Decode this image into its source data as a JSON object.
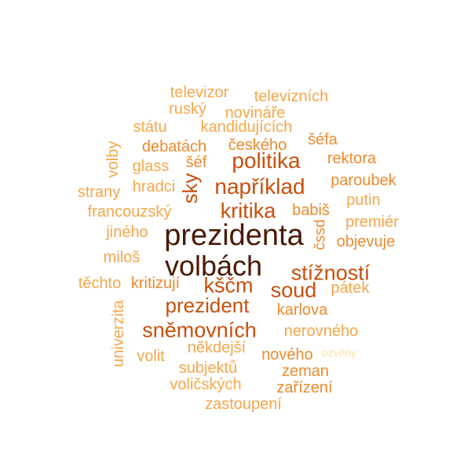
{
  "palette": {
    "lightest": "#fde0a5",
    "light": "#f7a64a",
    "medium": "#ee8a2c",
    "orange": "#e0701c",
    "dark_orange": "#c94f0c",
    "brown": "#8f3006",
    "darkest": "#4a1a04"
  },
  "words": [
    {
      "text": "prezidenta",
      "weight": 10
    },
    {
      "text": "volbách",
      "weight": 9.5
    },
    {
      "text": "stížností",
      "weight": 6
    },
    {
      "text": "kščm",
      "weight": 6
    },
    {
      "text": "politika",
      "weight": 6
    },
    {
      "text": "například",
      "weight": 6
    },
    {
      "text": "kritika",
      "weight": 5.5
    },
    {
      "text": "soud",
      "weight": 5.5
    },
    {
      "text": "prezident",
      "weight": 5.5
    },
    {
      "text": "sněmovních",
      "weight": 5.5
    },
    {
      "text": "sky",
      "weight": 5
    },
    {
      "text": "babiš",
      "weight": 3.5
    },
    {
      "text": "čssd",
      "weight": 3
    },
    {
      "text": "objevuje",
      "weight": 3
    },
    {
      "text": "televizor",
      "weight": 3
    },
    {
      "text": "televizních",
      "weight": 3
    },
    {
      "text": "ruský",
      "weight": 3
    },
    {
      "text": "novináře",
      "weight": 3
    },
    {
      "text": "státu",
      "weight": 3
    },
    {
      "text": "kandidujících",
      "weight": 3
    },
    {
      "text": "šéfa",
      "weight": 3
    },
    {
      "text": "debatách",
      "weight": 3
    },
    {
      "text": "českého",
      "weight": 3
    },
    {
      "text": "volby",
      "weight": 3
    },
    {
      "text": "glass",
      "weight": 3
    },
    {
      "text": "šéf",
      "weight": 3
    },
    {
      "text": "rektora",
      "weight": 3
    },
    {
      "text": "paroubek",
      "weight": 3
    },
    {
      "text": "strany",
      "weight": 3
    },
    {
      "text": "hradci",
      "weight": 3
    },
    {
      "text": "putin",
      "weight": 3
    },
    {
      "text": "francouzský",
      "weight": 3
    },
    {
      "text": "premiér",
      "weight": 3
    },
    {
      "text": "jiného",
      "weight": 3
    },
    {
      "text": "miloš",
      "weight": 3
    },
    {
      "text": "těchto",
      "weight": 3
    },
    {
      "text": "kritizují",
      "weight": 3
    },
    {
      "text": "pátek",
      "weight": 3
    },
    {
      "text": "karlova",
      "weight": 3
    },
    {
      "text": "univerzita",
      "weight": 3
    },
    {
      "text": "nerovného",
      "weight": 3
    },
    {
      "text": "někdejší",
      "weight": 3
    },
    {
      "text": "volit",
      "weight": 3
    },
    {
      "text": "nového",
      "weight": 3
    },
    {
      "text": "ozvěny",
      "weight": 1.5
    },
    {
      "text": "subjektů",
      "weight": 3
    },
    {
      "text": "zeman",
      "weight": 3
    },
    {
      "text": "voličských",
      "weight": 3
    },
    {
      "text": "zařízení",
      "weight": 3
    },
    {
      "text": "zastoupení",
      "weight": 3
    }
  ]
}
